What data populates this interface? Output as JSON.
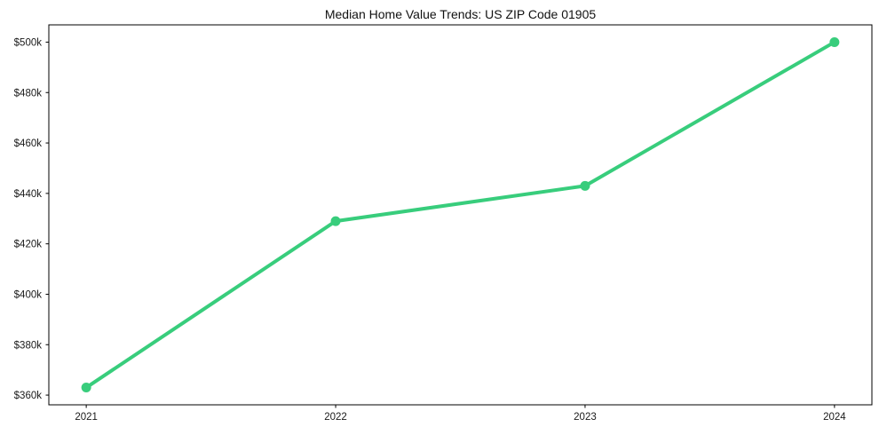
{
  "page": {
    "background": "#ffffff"
  },
  "chart_data": {
    "type": "line",
    "title": "Median Home Value Trends: US ZIP Code 01905",
    "xlabel": "",
    "ylabel": "",
    "x": [
      2021,
      2022,
      2023,
      2024
    ],
    "x_tick_labels": [
      "2021",
      "2022",
      "2023",
      "2024"
    ],
    "values": [
      363000,
      429000,
      443000,
      500000
    ],
    "y_ticks": [
      360000,
      380000,
      400000,
      420000,
      440000,
      460000,
      480000,
      500000
    ],
    "y_tick_labels": [
      "$360k",
      "$380k",
      "$400k",
      "$420k",
      "$440k",
      "$460k",
      "$480k",
      "$500k"
    ],
    "xlim": [
      2020.85,
      2024.15
    ],
    "ylim": [
      356150,
      506850
    ],
    "grid": false,
    "legend": "none",
    "line_color": "#38cd7c",
    "marker": "circle",
    "text_color": "#1a1a1a",
    "spine_color": "#000000"
  }
}
